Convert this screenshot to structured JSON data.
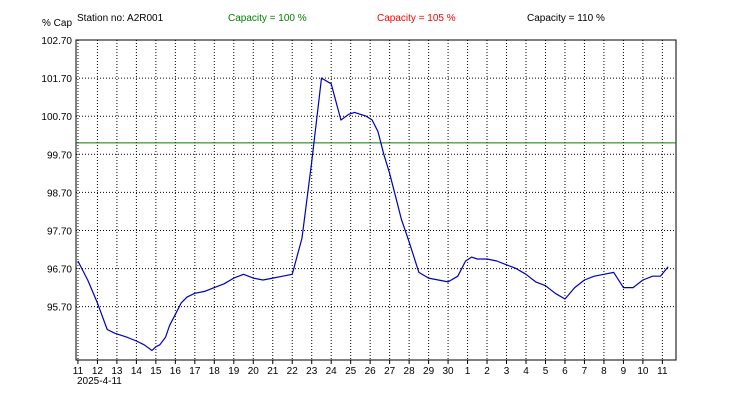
{
  "header": {
    "station": "Station no: A2R001",
    "cap100": "Capacity = 100 %",
    "cap105": "Capacity = 105 %",
    "cap110": "Capacity = 110 %"
  },
  "colors": {
    "series": "#0000c0",
    "cap100": "#008000",
    "cap105": "#ff0000",
    "cap110": "#000000",
    "grid": "#000000"
  },
  "chart_data": {
    "type": "line",
    "ylabel": "% Cap",
    "ylim": [
      94.3,
      102.7
    ],
    "y_ticks": [
      95.7,
      96.7,
      97.7,
      98.7,
      99.7,
      100.7,
      101.7,
      102.7
    ],
    "y_tick_labels": [
      "95.70",
      "96.70",
      "97.70",
      "98.70",
      "99.70",
      "100.70",
      "101.70",
      "102.70"
    ],
    "x_tick_labels": [
      "11",
      "12",
      "13",
      "14",
      "15",
      "16",
      "17",
      "18",
      "19",
      "20",
      "21",
      "22",
      "23",
      "24",
      "25",
      "26",
      "27",
      "28",
      "29",
      "30",
      "1",
      "2",
      "3",
      "4",
      "5",
      "6",
      "7",
      "8",
      "9",
      "10",
      "11"
    ],
    "x_date_label": "2025-4-11",
    "xlim": [
      -0.1,
      30.7
    ],
    "grid": true,
    "capacity_lines": [
      {
        "name": "Capacity = 100 %",
        "value": 100.0
      }
    ],
    "series": [
      {
        "x": [
          0.0,
          0.5,
          1.0,
          1.5,
          1.9,
          2.5,
          3.0,
          3.4,
          3.8,
          4.0,
          4.2,
          4.5,
          4.7,
          5.0,
          5.3,
          5.6,
          6.0,
          6.5,
          7.0,
          7.5,
          8.0,
          8.5,
          9.0,
          9.5,
          10.0,
          10.5,
          11.0,
          11.5,
          12.0,
          12.5,
          13.0,
          13.5,
          13.9,
          14.2,
          14.5,
          14.8,
          15.1,
          15.4,
          15.7,
          16.0,
          16.3,
          16.6,
          17.0,
          17.5,
          18.0,
          18.5,
          19.0,
          19.5,
          19.9,
          20.2,
          20.5,
          21.0,
          21.5,
          22.0,
          22.5,
          23.0,
          23.5,
          24.0,
          24.5,
          25.0,
          25.5,
          26.0,
          26.5,
          27.0,
          27.5,
          28.0,
          28.5,
          29.0,
          29.5,
          29.9,
          30.3
        ],
        "values": [
          96.9,
          96.4,
          95.8,
          95.1,
          95.0,
          94.9,
          94.8,
          94.7,
          94.55,
          94.65,
          94.7,
          94.9,
          95.2,
          95.5,
          95.8,
          95.95,
          96.05,
          96.1,
          96.2,
          96.3,
          96.45,
          96.55,
          96.45,
          96.4,
          96.45,
          96.5,
          96.55,
          97.5,
          99.5,
          101.7,
          101.55,
          100.6,
          100.75,
          100.8,
          100.75,
          100.7,
          100.6,
          100.3,
          99.7,
          99.2,
          98.6,
          98.0,
          97.4,
          96.6,
          96.45,
          96.4,
          96.35,
          96.5,
          96.9,
          97.0,
          96.95,
          96.95,
          96.9,
          96.8,
          96.7,
          96.55,
          96.35,
          96.25,
          96.05,
          95.9,
          96.2,
          96.4,
          96.5,
          96.55,
          96.6,
          96.2,
          96.2,
          96.4,
          96.5,
          96.5,
          96.75
        ]
      }
    ]
  }
}
